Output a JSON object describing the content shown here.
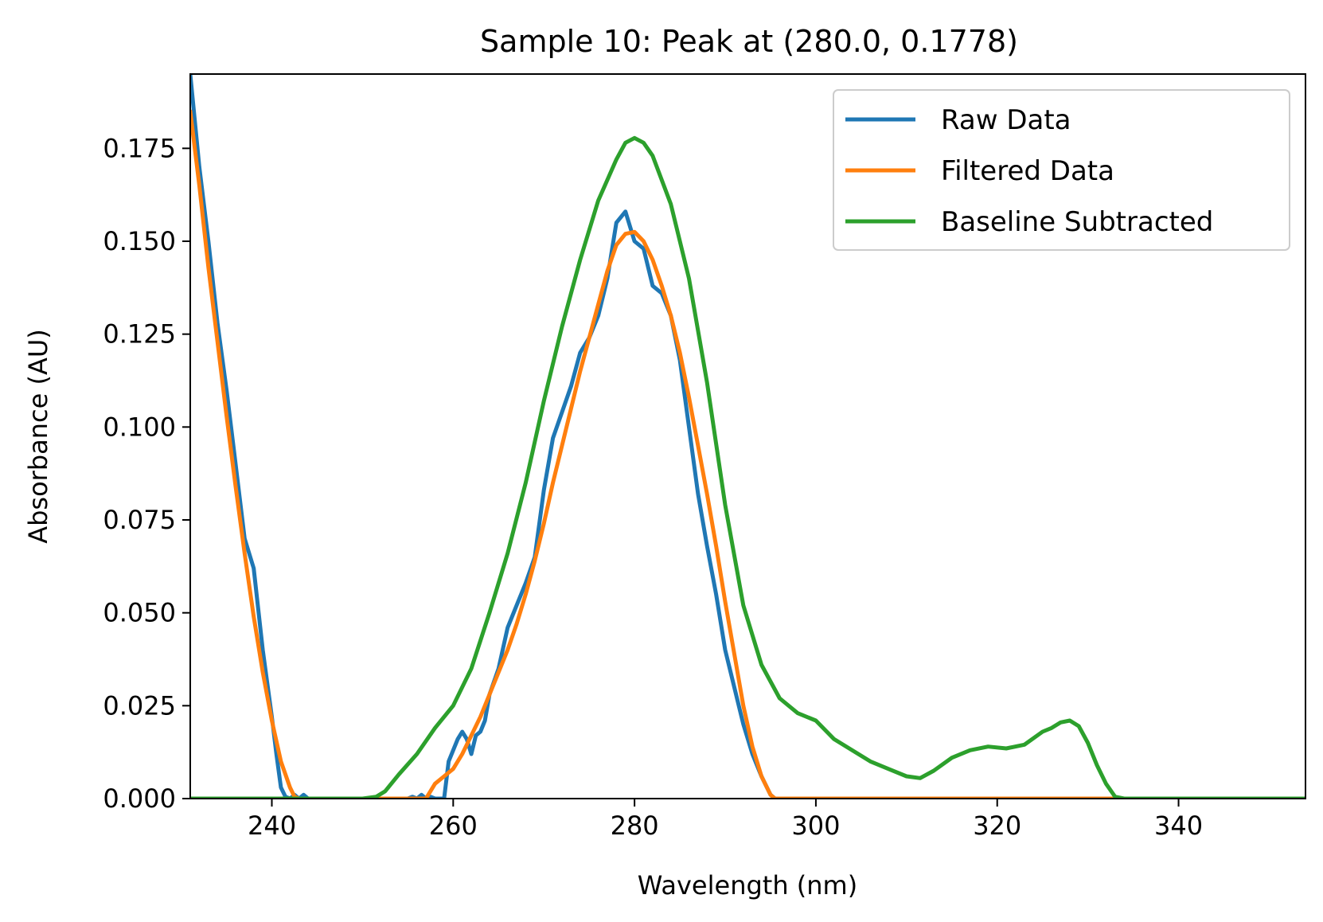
{
  "chart_data": {
    "type": "line",
    "title": "Sample 10: Peak at (280.0, 0.1778)",
    "xlabel": "Wavelength (nm)",
    "ylabel": "Absorbance (AU)",
    "xlim": [
      231,
      354
    ],
    "ylim": [
      0,
      0.195
    ],
    "xticks": [
      240,
      260,
      280,
      300,
      320,
      340
    ],
    "xtick_labels": [
      "240",
      "260",
      "280",
      "300",
      "320",
      "340"
    ],
    "yticks": [
      0.0,
      0.025,
      0.05,
      0.075,
      0.1,
      0.125,
      0.15,
      0.175
    ],
    "ytick_labels": [
      "0.000",
      "0.025",
      "0.050",
      "0.075",
      "0.100",
      "0.125",
      "0.150",
      "0.175"
    ],
    "grid": false,
    "legend_position": "top-right",
    "series": [
      {
        "name": "Raw Data",
        "color": "#1f77b4",
        "x": [
          231,
          232,
          233,
          234,
          235,
          236,
          237,
          238,
          239,
          240,
          240.5,
          241,
          241.5,
          242,
          242.5,
          243,
          243.5,
          244,
          250,
          255,
          255.5,
          256,
          256.5,
          257,
          257.5,
          258,
          258.5,
          259,
          259.5,
          260,
          260.5,
          261,
          261.5,
          262,
          262.5,
          263,
          263.5,
          264,
          265,
          266,
          267,
          268,
          269,
          270,
          271,
          272,
          273,
          274,
          275,
          276,
          277,
          278,
          279,
          280,
          281,
          282,
          283,
          284,
          285,
          286,
          287,
          288,
          289,
          290,
          291,
          292,
          293,
          294,
          295,
          295.5,
          296,
          300,
          310,
          320,
          330,
          340,
          354
        ],
        "y": [
          0.195,
          0.17,
          0.15,
          0.128,
          0.11,
          0.09,
          0.07,
          0.062,
          0.04,
          0.022,
          0.012,
          0.003,
          0.0005,
          0.0,
          0.001,
          0.0,
          0.001,
          0.0,
          0.0,
          0.0,
          0.0005,
          0.0,
          0.001,
          0.0,
          0.0005,
          0.0,
          0.0,
          0.0,
          0.01,
          0.013,
          0.016,
          0.018,
          0.016,
          0.012,
          0.017,
          0.018,
          0.021,
          0.028,
          0.035,
          0.046,
          0.052,
          0.058,
          0.065,
          0.083,
          0.097,
          0.104,
          0.111,
          0.12,
          0.124,
          0.13,
          0.14,
          0.155,
          0.158,
          0.15,
          0.148,
          0.138,
          0.136,
          0.13,
          0.118,
          0.1,
          0.082,
          0.068,
          0.055,
          0.04,
          0.03,
          0.02,
          0.012,
          0.006,
          0.001,
          0.0,
          0.0,
          0.0,
          0.0,
          0.0,
          0.0,
          0.0,
          0.0
        ]
      },
      {
        "name": "Filtered Data",
        "color": "#ff7f0e",
        "x": [
          231,
          232,
          233,
          234,
          235,
          236,
          237,
          238,
          239,
          240,
          241,
          242,
          242.5,
          243,
          250,
          257,
          257.5,
          258,
          259,
          260,
          261,
          262,
          263,
          264,
          265,
          266,
          267,
          268,
          269,
          270,
          271,
          272,
          273,
          274,
          275,
          276,
          277,
          278,
          279,
          280,
          281,
          282,
          283,
          284,
          285,
          286,
          287,
          288,
          289,
          290,
          291,
          292,
          293,
          294,
          295,
          295.5,
          296,
          300,
          310,
          320,
          330,
          340,
          354
        ],
        "y": [
          0.185,
          0.165,
          0.143,
          0.123,
          0.103,
          0.084,
          0.066,
          0.049,
          0.034,
          0.021,
          0.01,
          0.003,
          0.0005,
          0.0,
          0.0,
          0.0,
          0.002,
          0.004,
          0.006,
          0.008,
          0.012,
          0.017,
          0.022,
          0.028,
          0.034,
          0.04,
          0.047,
          0.055,
          0.064,
          0.074,
          0.085,
          0.095,
          0.105,
          0.115,
          0.124,
          0.133,
          0.142,
          0.149,
          0.152,
          0.1525,
          0.15,
          0.145,
          0.138,
          0.13,
          0.12,
          0.108,
          0.095,
          0.082,
          0.068,
          0.053,
          0.039,
          0.025,
          0.014,
          0.006,
          0.001,
          0.0,
          0.0,
          0.0,
          0.0,
          0.0,
          0.0,
          0.0,
          0.0
        ]
      },
      {
        "name": "Baseline Subtracted",
        "color": "#2ca02c",
        "x": [
          231,
          240,
          250,
          251.5,
          252.5,
          254,
          256,
          258,
          260,
          262,
          264,
          266,
          268,
          270,
          272,
          274,
          276,
          278,
          279,
          280,
          281,
          282,
          284,
          286,
          288,
          290,
          292,
          294,
          296,
          298,
          300,
          302,
          304,
          306,
          308,
          310,
          311.5,
          313,
          315,
          317,
          319,
          321,
          323,
          325,
          326,
          327,
          328,
          329,
          330,
          331,
          332,
          333,
          334,
          340,
          354
        ],
        "y": [
          0.0,
          0.0,
          0.0,
          0.0005,
          0.002,
          0.0065,
          0.012,
          0.019,
          0.025,
          0.035,
          0.05,
          0.066,
          0.085,
          0.107,
          0.127,
          0.145,
          0.161,
          0.172,
          0.1765,
          0.1778,
          0.1765,
          0.173,
          0.16,
          0.14,
          0.112,
          0.079,
          0.052,
          0.036,
          0.027,
          0.023,
          0.021,
          0.016,
          0.013,
          0.01,
          0.008,
          0.006,
          0.0055,
          0.0075,
          0.011,
          0.013,
          0.014,
          0.0135,
          0.0145,
          0.018,
          0.019,
          0.0205,
          0.021,
          0.0195,
          0.015,
          0.009,
          0.004,
          0.0005,
          0.0,
          0.0,
          0.0
        ]
      }
    ]
  }
}
